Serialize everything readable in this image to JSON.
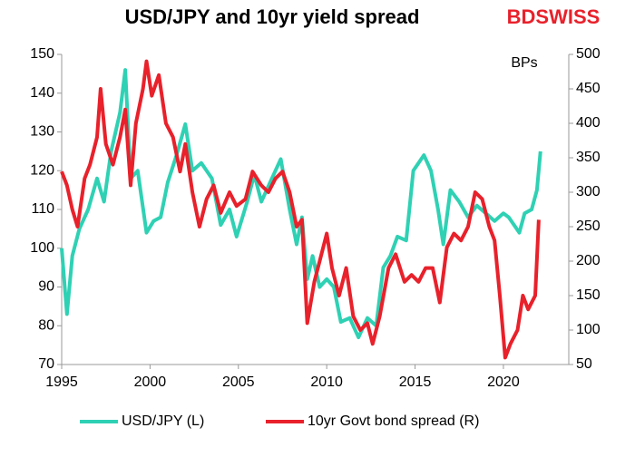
{
  "chart_data": {
    "type": "line",
    "title": "USD/JPY and 10yr yield spread",
    "logo": "BDSWISS",
    "y2_label": "BPs",
    "xlim": [
      1995,
      2023.7
    ],
    "xticks": [
      1995,
      2000,
      2005,
      2010,
      2015,
      2020
    ],
    "ylim": [
      70,
      150
    ],
    "yticks": [
      70,
      80,
      90,
      100,
      110,
      120,
      130,
      140,
      150
    ],
    "y2lim": [
      50,
      500
    ],
    "y2ticks": [
      50,
      100,
      150,
      200,
      250,
      300,
      350,
      400,
      450,
      500
    ],
    "series": [
      {
        "name": "USD/JPY (L)",
        "color": "#2fd1b4",
        "x": [
          1995.0,
          1995.3,
          1995.6,
          1996,
          1996.5,
          1997,
          1997.4,
          1997.8,
          1998.3,
          1998.6,
          1998.9,
          1999.3,
          1999.8,
          2000.2,
          2000.6,
          2001,
          2001.5,
          2002,
          2002.4,
          2002.9,
          2003.5,
          2004,
          2004.5,
          2004.9,
          2005.5,
          2005.9,
          2006.3,
          2006.8,
          2007.4,
          2007.9,
          2008.3,
          2008.6,
          2008.9,
          2009.2,
          2009.6,
          2010,
          2010.4,
          2010.8,
          2011.3,
          2011.8,
          2012.3,
          2012.8,
          2013.2,
          2013.6,
          2014,
          2014.5,
          2014.9,
          2015.5,
          2015.9,
          2016.3,
          2016.6,
          2017,
          2017.5,
          2018,
          2018.5,
          2019,
          2019.5,
          2020,
          2020.3,
          2020.9,
          2021.2,
          2021.6,
          2021.9,
          2022.1
        ],
        "values": [
          100,
          83,
          98,
          105,
          110,
          118,
          112,
          125,
          135,
          146,
          118,
          120,
          104,
          107,
          108,
          117,
          124,
          132,
          120,
          122,
          118,
          106,
          110,
          103,
          112,
          119,
          112,
          117,
          123,
          110,
          101,
          108,
          92,
          98,
          90,
          92,
          90,
          81,
          82,
          77,
          82,
          80,
          95,
          98,
          103,
          102,
          120,
          124,
          120,
          110,
          101,
          115,
          112,
          108,
          111,
          109,
          107,
          109,
          108,
          104,
          109,
          110,
          115,
          125
        ]
      },
      {
        "name": "10yr Govt bond spread (R)",
        "color": "#e8212b",
        "axis": "y2",
        "x": [
          1995.0,
          1995.3,
          1995.6,
          1995.9,
          1996.3,
          1996.6,
          1997,
          1997.2,
          1997.5,
          1997.9,
          1998.3,
          1998.6,
          1998.9,
          1999.2,
          1999.6,
          1999.8,
          2000.1,
          2000.5,
          2000.9,
          2001.3,
          2001.7,
          2002,
          2002.4,
          2002.8,
          2003.2,
          2003.6,
          2004,
          2004.5,
          2004.9,
          2005.4,
          2005.8,
          2006.3,
          2006.7,
          2007.1,
          2007.5,
          2007.9,
          2008.3,
          2008.6,
          2008.9,
          2009.3,
          2009.6,
          2010,
          2010.3,
          2010.7,
          2011.1,
          2011.5,
          2011.9,
          2012.3,
          2012.6,
          2013,
          2013.5,
          2013.9,
          2014.4,
          2014.8,
          2015.2,
          2015.6,
          2016,
          2016.4,
          2016.8,
          2017.2,
          2017.6,
          2018,
          2018.4,
          2018.8,
          2019.2,
          2019.5,
          2019.8,
          2020.1,
          2020.4,
          2020.8,
          2021.1,
          2021.4,
          2021.8,
          2022.0
        ],
        "values": [
          330,
          310,
          275,
          250,
          320,
          340,
          380,
          450,
          370,
          340,
          380,
          420,
          310,
          400,
          450,
          490,
          440,
          470,
          400,
          380,
          330,
          370,
          300,
          250,
          290,
          310,
          270,
          300,
          280,
          290,
          330,
          310,
          300,
          320,
          330,
          300,
          250,
          260,
          110,
          170,
          200,
          240,
          190,
          150,
          190,
          120,
          100,
          110,
          80,
          120,
          190,
          210,
          170,
          180,
          170,
          190,
          190,
          140,
          220,
          240,
          230,
          250,
          300,
          290,
          250,
          230,
          150,
          60,
          80,
          100,
          150,
          130,
          150,
          260
        ]
      }
    ]
  }
}
